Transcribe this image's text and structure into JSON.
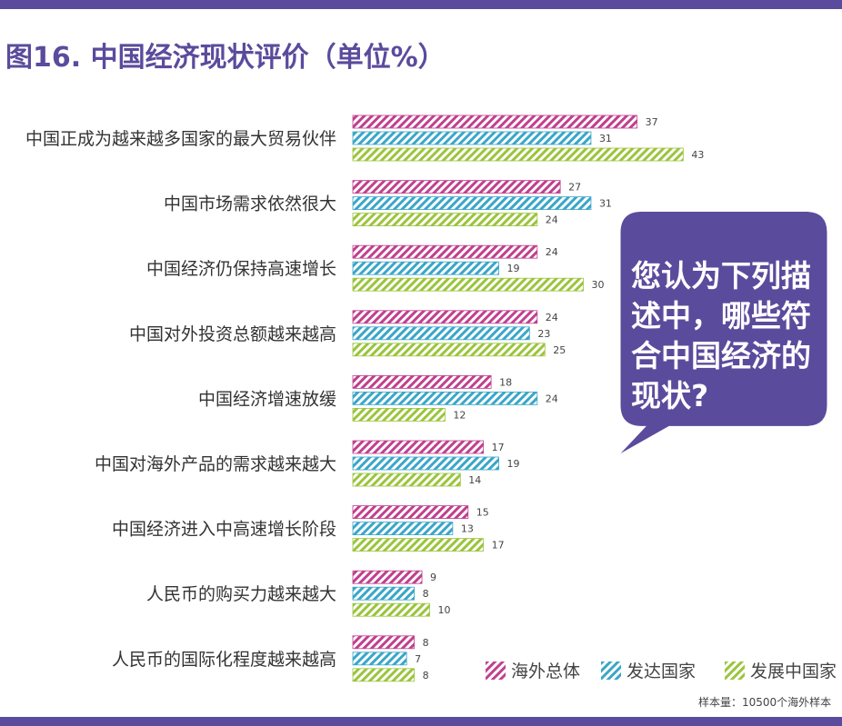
{
  "title": "图16. 中国经济现状评价（单位%）",
  "callout": "您认为下列描\n述中，哪些符\n合中国经济的\n现状?",
  "sample_note": "样本量：10500个海外样本",
  "colors": {
    "overall": "#c0408e",
    "developed": "#3aa6c8",
    "developing": "#9bc43c",
    "accent": "#5b4b9c"
  },
  "chart_data": {
    "type": "bar",
    "orientation": "horizontal",
    "unit": "%",
    "categories": [
      "中国正成为越来越多国家的最大贸易伙伴",
      "中国市场需求依然很大",
      "中国经济仍保持高速增长",
      "中国对外投资总额越来越高",
      "中国经济增速放缓",
      "中国对海外产品的需求越来越大",
      "中国经济进入中高速增长阶段",
      "人民币的购买力越来越大",
      "人民币的国际化程度越来越高"
    ],
    "series": [
      {
        "name": "海外总体",
        "values": [
          37,
          27,
          24,
          24,
          18,
          17,
          15,
          9,
          8
        ]
      },
      {
        "name": "发达国家",
        "values": [
          31,
          31,
          19,
          23,
          24,
          19,
          13,
          8,
          7
        ]
      },
      {
        "name": "发展中国家",
        "values": [
          43,
          24,
          30,
          25,
          12,
          14,
          17,
          10,
          8
        ]
      }
    ],
    "legend_position": "bottom-right",
    "grid": false
  }
}
